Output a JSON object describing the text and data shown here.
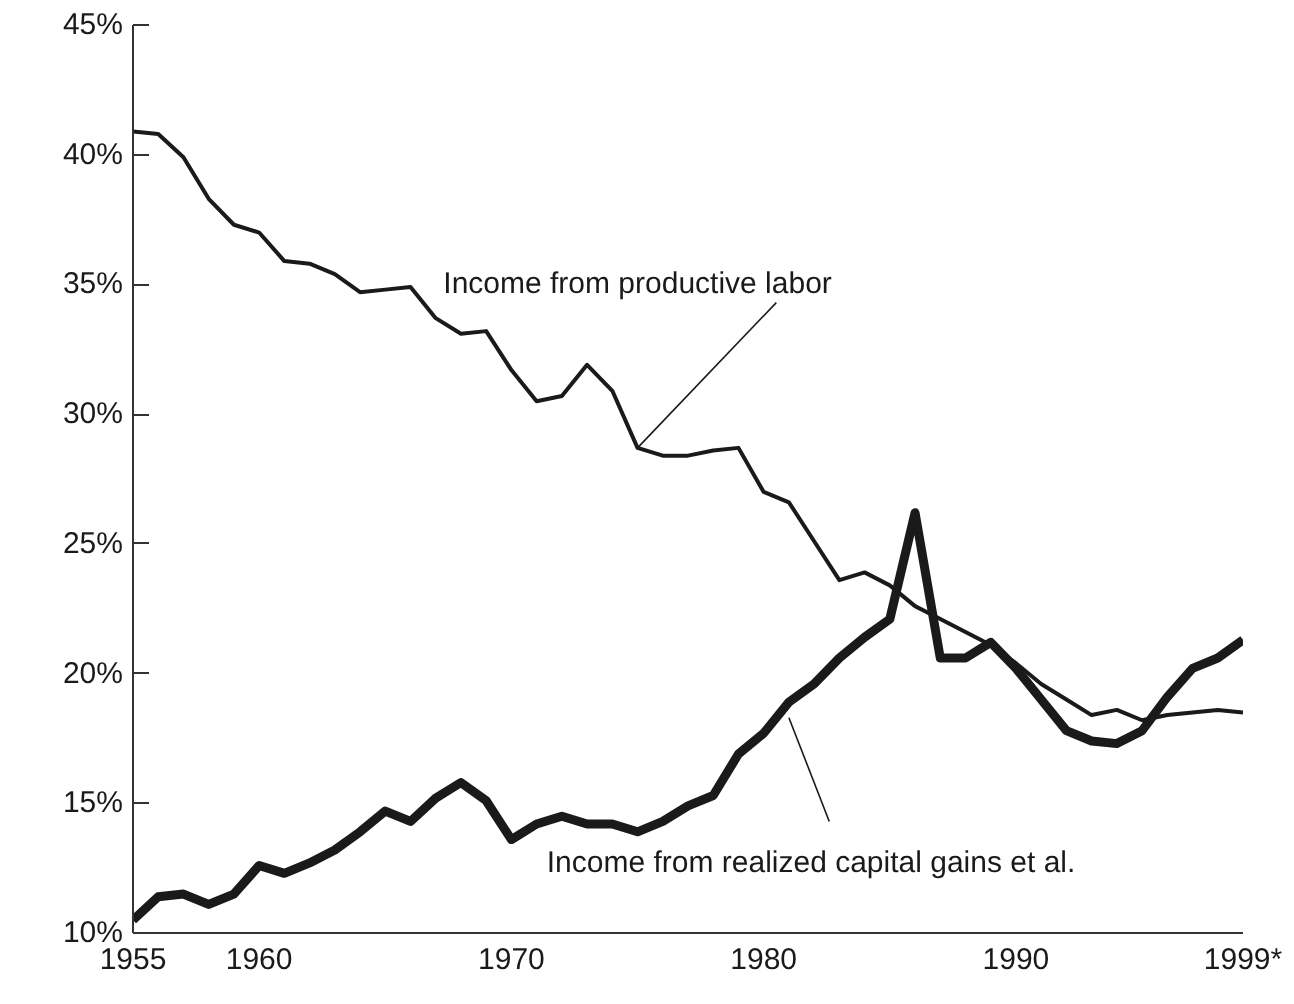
{
  "chart_data": {
    "type": "line",
    "x": [
      1955,
      1956,
      1957,
      1958,
      1959,
      1960,
      1961,
      1962,
      1963,
      1964,
      1965,
      1966,
      1967,
      1968,
      1969,
      1970,
      1971,
      1972,
      1973,
      1974,
      1975,
      1976,
      1977,
      1978,
      1979,
      1980,
      1981,
      1982,
      1983,
      1984,
      1985,
      1986,
      1987,
      1988,
      1989,
      1990,
      1991,
      1992,
      1993,
      1994,
      1995,
      1996,
      1997,
      1998,
      1999
    ],
    "series": [
      {
        "color": "#1a1a1a",
        "values": [
          40.9,
          40.8,
          39.9,
          38.3,
          37.3,
          37.0,
          35.9,
          35.8,
          35.4,
          34.7,
          34.8,
          34.9,
          33.7,
          33.1,
          33.2,
          31.7,
          30.5,
          30.7,
          31.9,
          30.9,
          28.7,
          28.4,
          28.4,
          28.6,
          28.7,
          27.0,
          26.6,
          25.1,
          23.6,
          23.9,
          23.4,
          22.6,
          22.1,
          21.6,
          21.1,
          20.4,
          19.6,
          19.0,
          18.4,
          18.6,
          18.2,
          18.4,
          18.5,
          18.6,
          18.5
        ]
      },
      {
        "color": "#1a1a1a",
        "values": [
          10.5,
          11.4,
          11.5,
          11.1,
          11.5,
          12.6,
          12.3,
          12.7,
          13.2,
          13.9,
          14.7,
          14.3,
          15.2,
          15.8,
          15.1,
          13.6,
          14.2,
          14.5,
          14.2,
          14.2,
          13.9,
          14.3,
          14.9,
          15.3,
          16.9,
          17.7,
          18.9,
          19.6,
          20.6,
          21.4,
          22.1,
          26.2,
          20.6,
          20.6,
          21.2,
          20.2,
          19.0,
          17.8,
          17.4,
          17.3,
          17.8,
          19.1,
          20.2,
          20.6,
          21.3
        ]
      }
    ],
    "annotations": [
      {
        "text": "Income from productive labor",
        "x": 1975,
        "y": 28.7
      },
      {
        "text": "Income from realized capital gains et al.",
        "x": 1981,
        "y": 18.3
      }
    ],
    "xlim": [
      1955,
      1999
    ],
    "xticks": [
      1955,
      1960,
      1970,
      1980,
      1990,
      {
        "value": 1999,
        "label": "1999*"
      }
    ],
    "ylim": [
      10,
      45
    ],
    "yticks": [
      {
        "value": 10,
        "label": "10%"
      },
      {
        "value": 15,
        "label": "15%"
      },
      {
        "value": 20,
        "label": "20%"
      },
      {
        "value": 25,
        "label": "25%"
      },
      {
        "value": 30,
        "label": "30%"
      },
      {
        "value": 35,
        "label": "35%"
      },
      {
        "value": 40,
        "label": "40%"
      },
      {
        "value": 45,
        "label": "45%"
      }
    ]
  }
}
